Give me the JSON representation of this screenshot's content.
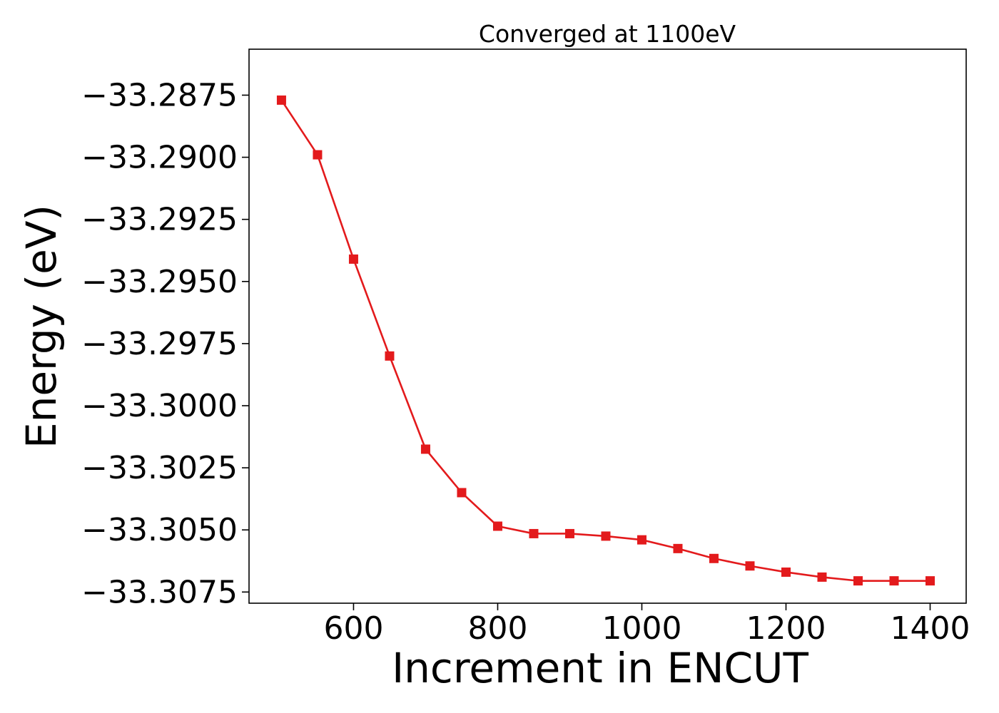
{
  "chart_data": {
    "type": "line",
    "title": "Converged at 1100eV",
    "xlabel": "Increment in ENCUT",
    "ylabel": "Energy (eV)",
    "xlim": [
      455,
      1450
    ],
    "ylim": [
      -33.30795,
      -33.28565
    ],
    "x_ticks": [
      600,
      800,
      1000,
      1200,
      1400
    ],
    "y_ticks": [
      -33.2875,
      -33.29,
      -33.2925,
      -33.295,
      -33.2975,
      -33.3,
      -33.3025,
      -33.305,
      -33.3075
    ],
    "y_tick_labels": [
      "−33.2875",
      "−33.2900",
      "−33.2925",
      "−33.2950",
      "−33.2975",
      "−33.3000",
      "−33.3025",
      "−33.3050",
      "−33.3075"
    ],
    "x_tick_labels": [
      "600",
      "800",
      "1000",
      "1200",
      "1400"
    ],
    "grid": false,
    "series": [
      {
        "color": "#e31a1c",
        "marker": "square",
        "x": [
          500,
          550,
          600,
          650,
          700,
          750,
          800,
          850,
          900,
          950,
          1000,
          1050,
          1100,
          1150,
          1200,
          1250,
          1300,
          1350,
          1400
        ],
        "y": [
          -33.2877,
          -33.2899,
          -33.2941,
          -33.298,
          -33.30175,
          -33.3035,
          -33.30485,
          -33.30515,
          -33.30515,
          -33.30525,
          -33.3054,
          -33.30575,
          -33.30615,
          -33.30645,
          -33.3067,
          -33.3069,
          -33.30705,
          -33.30705,
          -33.30705
        ]
      }
    ]
  }
}
